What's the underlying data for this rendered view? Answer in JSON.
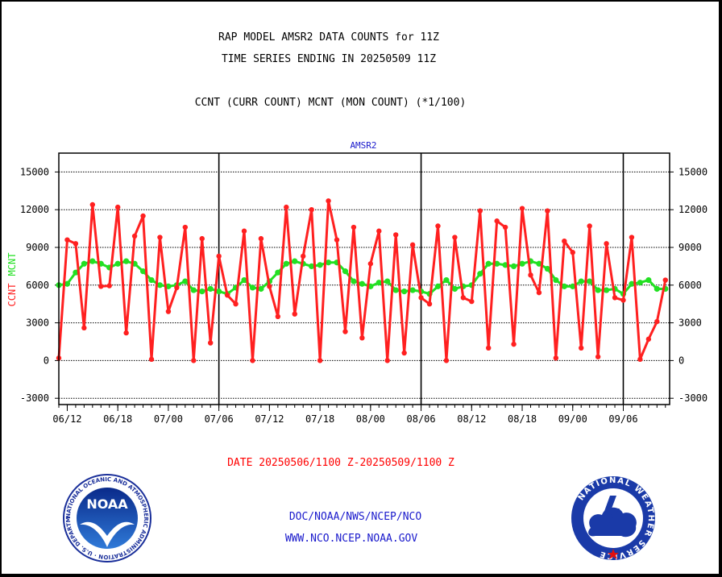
{
  "header": {
    "title_line1": "RAP MODEL AMSR2 DATA COUNTS for 11Z",
    "title_line2": "TIME SERIES ENDING IN 20250509 11Z",
    "subtitle": "CCNT (CURR COUNT) MCNT (MON COUNT) (*1/100)"
  },
  "footer": {
    "date_range": "DATE 20250506/1100 Z-20250509/1100 Z",
    "org_path": "DOC/NOAA/NWS/NCEP/NCO",
    "website": "WWW.NCO.NCEP.NOAA.GOV"
  },
  "logos": {
    "noaa_text": "NOAA",
    "noaa_ring": "NATIONAL OCEANIC AND ATMOSPHERIC ADMINISTRATION · U.S. DEPARTMENT OF COMMERCE ·",
    "nws_ring": "NATIONAL WEATHER SERVICE"
  },
  "colors": {
    "ccnt": "#ff2020",
    "mcnt": "#22e022",
    "title": "#000000",
    "date_text": "#ff0000",
    "links": "#1a1acc",
    "panel_label": "#1a1acc"
  },
  "chart_data": {
    "type": "line",
    "panel_label": "AMSR2",
    "ylabel_ccnt": "CCNT",
    "ylabel_mcnt": "MCNT",
    "ylim": [
      -3500,
      16500
    ],
    "yticks": [
      -3000,
      0,
      3000,
      6000,
      9000,
      12000,
      15000
    ],
    "xlim": [
      0,
      72.5
    ],
    "xticks": [
      {
        "label": "06/12",
        "x": 1
      },
      {
        "label": "06/18",
        "x": 7
      },
      {
        "label": "07/00",
        "x": 13
      },
      {
        "label": "07/06",
        "x": 19
      },
      {
        "label": "07/12",
        "x": 25
      },
      {
        "label": "07/18",
        "x": 31
      },
      {
        "label": "08/00",
        "x": 37
      },
      {
        "label": "08/06",
        "x": 43
      },
      {
        "label": "08/12",
        "x": 49
      },
      {
        "label": "08/18",
        "x": 55
      },
      {
        "label": "09/00",
        "x": 61
      },
      {
        "label": "09/06",
        "x": 67
      }
    ],
    "day_boundaries": [
      19,
      43,
      67
    ],
    "grid": true,
    "series": [
      {
        "name": "CCNT",
        "values": [
          200,
          9600,
          9300,
          2600,
          12400,
          5900,
          5950,
          12200,
          2200,
          9900,
          11500,
          100,
          9800,
          3900,
          5800,
          10600,
          0,
          9700,
          1400,
          8300,
          5200,
          4500,
          10300,
          0,
          9700,
          5900,
          3500,
          12200,
          3700,
          8300,
          12000,
          0,
          12700,
          9600,
          2300,
          10600,
          1800,
          7700,
          10300,
          0,
          10000,
          600,
          9200,
          5000,
          4500,
          10700,
          0,
          9800,
          5000,
          4700,
          11900,
          1000,
          11100,
          10600,
          1300,
          12100,
          6800,
          5400,
          11900,
          200,
          9500,
          8600,
          1000,
          10700,
          300,
          9300,
          5000,
          4800,
          9800,
          100,
          1700,
          3100,
          6400
        ]
      },
      {
        "name": "MCNT",
        "values": [
          6000,
          6100,
          7000,
          7700,
          7900,
          7700,
          7400,
          7700,
          7900,
          7700,
          7100,
          6400,
          6000,
          5900,
          6000,
          6300,
          5600,
          5500,
          5700,
          5500,
          5300,
          5800,
          6400,
          5800,
          5700,
          6300,
          7000,
          7700,
          7900,
          7700,
          7500,
          7600,
          7800,
          7800,
          7100,
          6300,
          6100,
          5900,
          6200,
          6300,
          5600,
          5500,
          5600,
          5500,
          5300,
          5900,
          6400,
          5700,
          5900,
          6000,
          6900,
          7700,
          7700,
          7600,
          7500,
          7700,
          7900,
          7700,
          7300,
          6400,
          5900,
          5900,
          6300,
          6300,
          5600,
          5600,
          5700,
          5300,
          6100,
          6200,
          6400,
          5700,
          5700
        ]
      }
    ]
  }
}
